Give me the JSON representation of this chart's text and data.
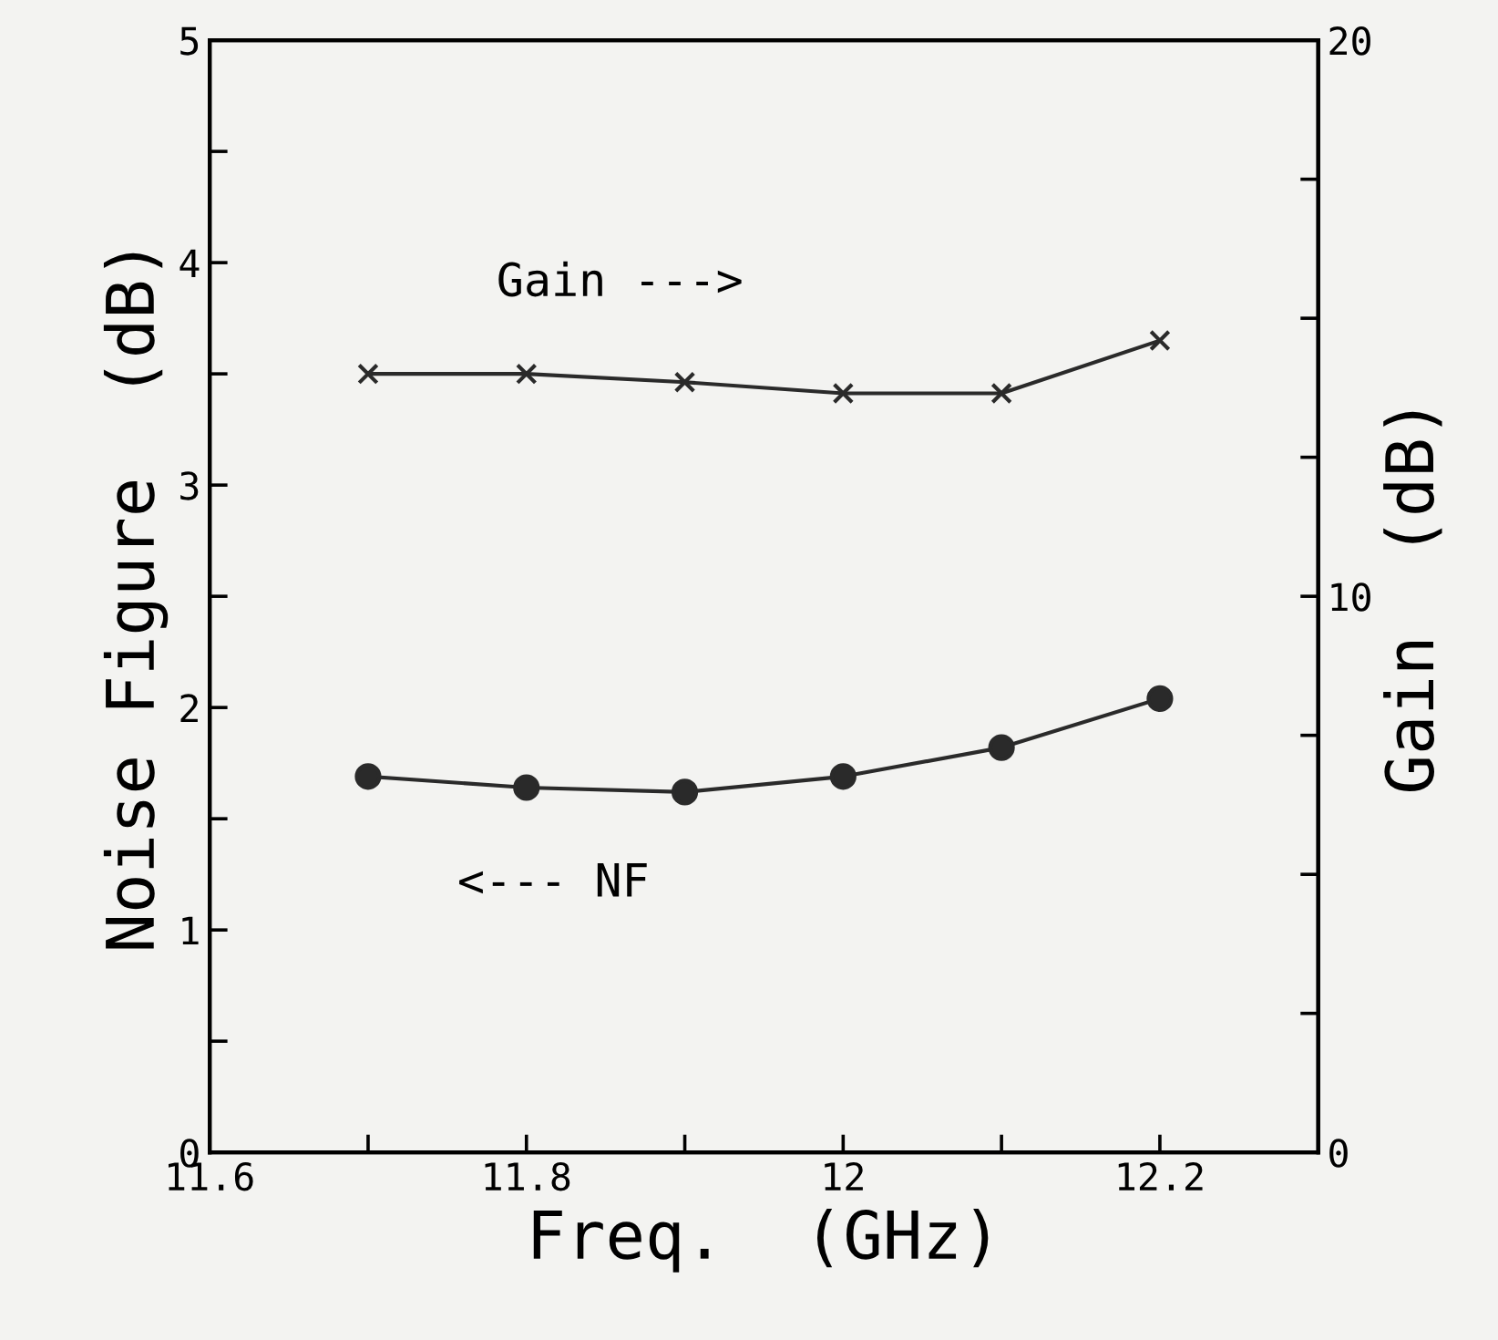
{
  "chart_data": {
    "type": "line",
    "xlabel": "Freq.  (GHz)",
    "ylabel": "Noise Figure  (dB)",
    "y2label": "Gain  (dB)",
    "x": [
      11.7,
      11.8,
      11.9,
      12.0,
      12.1,
      12.2
    ],
    "series": [
      {
        "color": "#2a2a2a",
        "marker": "circle",
        "values": [
          1.69,
          1.64,
          1.62,
          1.69,
          1.82,
          2.04
        ]
      },
      {
        "color": "#2a2a2a",
        "marker": "cross",
        "axis": "y2",
        "values": [
          14.0,
          14.0,
          13.85,
          13.65,
          13.65,
          14.6
        ]
      }
    ],
    "annotations": [
      "Gain --->",
      "<--- NF"
    ],
    "xlim": [
      11.6,
      12.3
    ],
    "xticks": [
      11.6,
      {
        "value": 11.7,
        "label": null
      },
      11.8,
      {
        "value": 11.9,
        "label": null
      },
      12,
      {
        "value": 12.1,
        "label": null
      },
      12.2
    ],
    "ylim": [
      0,
      5
    ],
    "yticks": [
      0,
      {
        "value": 0.5,
        "label": null
      },
      1,
      {
        "value": 1.5,
        "label": null
      },
      2,
      {
        "value": 2.5,
        "label": null
      },
      3,
      {
        "value": 3.5,
        "label": null
      },
      4,
      {
        "value": 4.5,
        "label": null
      },
      5
    ],
    "y2lim": [
      0,
      20
    ],
    "y2ticks": [
      0,
      {
        "value": 2.5,
        "label": null
      },
      {
        "value": 5,
        "label": null
      },
      {
        "value": 7.5,
        "label": null
      },
      10,
      {
        "value": 12.5,
        "label": null
      },
      {
        "value": 15,
        "label": null
      },
      {
        "value": 17.5,
        "label": null
      },
      20
    ],
    "grid": false,
    "legend": false,
    "line_style": "solid"
  }
}
